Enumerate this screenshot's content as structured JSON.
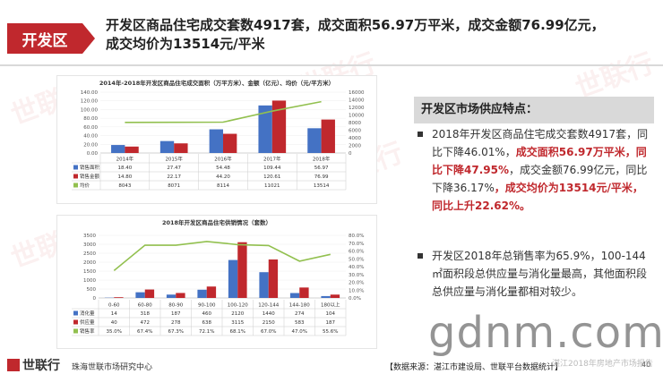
{
  "header": {
    "tag": "开发区",
    "title_line1": "开发区商品住宅成交套数4917套，成交面积56.97万平米，成交金额76.99亿元，",
    "title_line2": "成交均价为13514元/平米"
  },
  "watermark": "世联行",
  "site_watermark": "gdnm.com",
  "side": {
    "title": "开发区市场供应特点：",
    "b1_a": "2018年开发区商品住宅成交套数4917套，同比下降46.01%，",
    "b1_r1": "成交面积56.97万平米，同比下降47.95%",
    "b1_b": "，成交金额76.99亿元，同比下降36.17%",
    "b1_r2": "，成交均价为13514元/平米，同比上升22.62%。",
    "b2": "开发区2018年总销售率为65.9%，100-144㎡面积段总供应量与消化量最高，其他面积段总供应量与消化量都相对较少。"
  },
  "footer": {
    "logo": "世联行",
    "org": "珠海世联市场研究中心",
    "source": "【数据来源：湛江市建设局、世联平台数据统计】",
    "source2": "湛江2018年房地产市场报告",
    "page": "40"
  },
  "chart_data": [
    {
      "type": "bar",
      "title": "2014年-2018年开发区商品住宅成交面积（万平方米）、金额（亿元）、均价（元/平方米）",
      "categories": [
        "2014年",
        "2015年",
        "2016年",
        "2017年",
        "2018年"
      ],
      "series": [
        {
          "name": "销售面积",
          "values": [
            18.4,
            27.47,
            54.48,
            109.44,
            56.97
          ],
          "labels": [
            "18.40",
            "27.47",
            "54.48",
            "109.44",
            "56.97"
          ],
          "color": "#4472c4",
          "axis": "left"
        },
        {
          "name": "销售金额",
          "values": [
            14.8,
            22.17,
            44.2,
            120.61,
            76.99
          ],
          "labels": [
            "14.80",
            "22.17",
            "44.20",
            "120.61",
            "76.99"
          ],
          "color": "#c0282d",
          "axis": "left"
        },
        {
          "name": "均价",
          "values": [
            8043,
            8071,
            8114,
            11021,
            13514
          ],
          "labels": [
            "8043",
            "8071",
            "8114",
            "11021",
            "13514"
          ],
          "color": "#92c04f",
          "type": "line",
          "axis": "right"
        }
      ],
      "left_ticks": [
        "0.00",
        "20.00",
        "40.00",
        "60.00",
        "80.00",
        "100.00",
        "120.00",
        "140.00"
      ],
      "right_ticks": [
        "0",
        "2000",
        "4000",
        "6000",
        "8000",
        "10000",
        "12000",
        "14000",
        "16000"
      ],
      "ylim": [
        0,
        140
      ],
      "y2lim": [
        0,
        16000
      ]
    },
    {
      "type": "bar",
      "title": "2018年开发区商品住宅供销情况（套数）",
      "categories": [
        "0-60",
        "60-80",
        "80-90",
        "90-100",
        "100-120",
        "120-144",
        "144-180",
        "180以上"
      ],
      "series": [
        {
          "name": "消化量",
          "values": [
            14,
            318,
            187,
            460,
            2120,
            1440,
            274,
            104
          ],
          "labels": [
            "14",
            "318",
            "187",
            "460",
            "2120",
            "1440",
            "274",
            "104"
          ],
          "color": "#4472c4",
          "axis": "left"
        },
        {
          "name": "供应量",
          "values": [
            40,
            472,
            278,
            638,
            3115,
            2150,
            583,
            187
          ],
          "labels": [
            "40",
            "472",
            "278",
            "638",
            "3115",
            "2150",
            "583",
            "187"
          ],
          "color": "#c0282d",
          "axis": "left"
        },
        {
          "name": "销售率",
          "values": [
            35.0,
            67.4,
            67.3,
            72.1,
            68.1,
            67.0,
            47.0,
            55.6
          ],
          "labels": [
            "35.0%",
            "67.4%",
            "67.3%",
            "72.1%",
            "68.1%",
            "67.0%",
            "47.0%",
            "55.6%"
          ],
          "color": "#92c04f",
          "type": "line",
          "axis": "right"
        }
      ],
      "left_ticks": [
        "0",
        "500",
        "1000",
        "1500",
        "2000",
        "2500",
        "3000",
        "3500"
      ],
      "right_ticks": [
        "0.0%",
        "10.0%",
        "20.0%",
        "30.0%",
        "40.0%",
        "50.0%",
        "60.0%",
        "70.0%",
        "80.0%"
      ],
      "ylim": [
        0,
        3500
      ],
      "y2lim": [
        0,
        80
      ]
    }
  ]
}
